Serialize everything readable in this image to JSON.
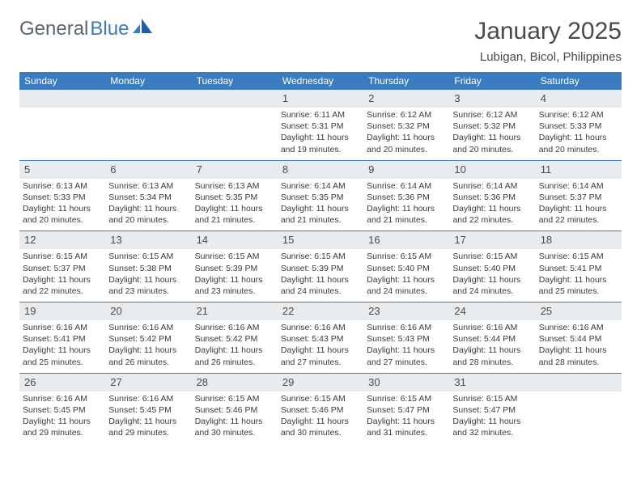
{
  "brand": {
    "part1": "General",
    "part2": "Blue"
  },
  "title": "January 2025",
  "location": "Lubigan, Bicol, Philippines",
  "colors": {
    "header_bg": "#3b7bbf",
    "header_text": "#ffffff",
    "daynum_bg": "#e9ecef",
    "text": "#4a4a4a",
    "rule": "#3b7bbf"
  },
  "weekdays": [
    "Sunday",
    "Monday",
    "Tuesday",
    "Wednesday",
    "Thursday",
    "Friday",
    "Saturday"
  ],
  "weeks": [
    [
      {
        "n": "",
        "sr": "",
        "ss": "",
        "d1": "",
        "d2": ""
      },
      {
        "n": "",
        "sr": "",
        "ss": "",
        "d1": "",
        "d2": ""
      },
      {
        "n": "",
        "sr": "",
        "ss": "",
        "d1": "",
        "d2": ""
      },
      {
        "n": "1",
        "sr": "Sunrise: 6:11 AM",
        "ss": "Sunset: 5:31 PM",
        "d1": "Daylight: 11 hours",
        "d2": "and 19 minutes."
      },
      {
        "n": "2",
        "sr": "Sunrise: 6:12 AM",
        "ss": "Sunset: 5:32 PM",
        "d1": "Daylight: 11 hours",
        "d2": "and 20 minutes."
      },
      {
        "n": "3",
        "sr": "Sunrise: 6:12 AM",
        "ss": "Sunset: 5:32 PM",
        "d1": "Daylight: 11 hours",
        "d2": "and 20 minutes."
      },
      {
        "n": "4",
        "sr": "Sunrise: 6:12 AM",
        "ss": "Sunset: 5:33 PM",
        "d1": "Daylight: 11 hours",
        "d2": "and 20 minutes."
      }
    ],
    [
      {
        "n": "5",
        "sr": "Sunrise: 6:13 AM",
        "ss": "Sunset: 5:33 PM",
        "d1": "Daylight: 11 hours",
        "d2": "and 20 minutes."
      },
      {
        "n": "6",
        "sr": "Sunrise: 6:13 AM",
        "ss": "Sunset: 5:34 PM",
        "d1": "Daylight: 11 hours",
        "d2": "and 20 minutes."
      },
      {
        "n": "7",
        "sr": "Sunrise: 6:13 AM",
        "ss": "Sunset: 5:35 PM",
        "d1": "Daylight: 11 hours",
        "d2": "and 21 minutes."
      },
      {
        "n": "8",
        "sr": "Sunrise: 6:14 AM",
        "ss": "Sunset: 5:35 PM",
        "d1": "Daylight: 11 hours",
        "d2": "and 21 minutes."
      },
      {
        "n": "9",
        "sr": "Sunrise: 6:14 AM",
        "ss": "Sunset: 5:36 PM",
        "d1": "Daylight: 11 hours",
        "d2": "and 21 minutes."
      },
      {
        "n": "10",
        "sr": "Sunrise: 6:14 AM",
        "ss": "Sunset: 5:36 PM",
        "d1": "Daylight: 11 hours",
        "d2": "and 22 minutes."
      },
      {
        "n": "11",
        "sr": "Sunrise: 6:14 AM",
        "ss": "Sunset: 5:37 PM",
        "d1": "Daylight: 11 hours",
        "d2": "and 22 minutes."
      }
    ],
    [
      {
        "n": "12",
        "sr": "Sunrise: 6:15 AM",
        "ss": "Sunset: 5:37 PM",
        "d1": "Daylight: 11 hours",
        "d2": "and 22 minutes."
      },
      {
        "n": "13",
        "sr": "Sunrise: 6:15 AM",
        "ss": "Sunset: 5:38 PM",
        "d1": "Daylight: 11 hours",
        "d2": "and 23 minutes."
      },
      {
        "n": "14",
        "sr": "Sunrise: 6:15 AM",
        "ss": "Sunset: 5:39 PM",
        "d1": "Daylight: 11 hours",
        "d2": "and 23 minutes."
      },
      {
        "n": "15",
        "sr": "Sunrise: 6:15 AM",
        "ss": "Sunset: 5:39 PM",
        "d1": "Daylight: 11 hours",
        "d2": "and 24 minutes."
      },
      {
        "n": "16",
        "sr": "Sunrise: 6:15 AM",
        "ss": "Sunset: 5:40 PM",
        "d1": "Daylight: 11 hours",
        "d2": "and 24 minutes."
      },
      {
        "n": "17",
        "sr": "Sunrise: 6:15 AM",
        "ss": "Sunset: 5:40 PM",
        "d1": "Daylight: 11 hours",
        "d2": "and 24 minutes."
      },
      {
        "n": "18",
        "sr": "Sunrise: 6:15 AM",
        "ss": "Sunset: 5:41 PM",
        "d1": "Daylight: 11 hours",
        "d2": "and 25 minutes."
      }
    ],
    [
      {
        "n": "19",
        "sr": "Sunrise: 6:16 AM",
        "ss": "Sunset: 5:41 PM",
        "d1": "Daylight: 11 hours",
        "d2": "and 25 minutes."
      },
      {
        "n": "20",
        "sr": "Sunrise: 6:16 AM",
        "ss": "Sunset: 5:42 PM",
        "d1": "Daylight: 11 hours",
        "d2": "and 26 minutes."
      },
      {
        "n": "21",
        "sr": "Sunrise: 6:16 AM",
        "ss": "Sunset: 5:42 PM",
        "d1": "Daylight: 11 hours",
        "d2": "and 26 minutes."
      },
      {
        "n": "22",
        "sr": "Sunrise: 6:16 AM",
        "ss": "Sunset: 5:43 PM",
        "d1": "Daylight: 11 hours",
        "d2": "and 27 minutes."
      },
      {
        "n": "23",
        "sr": "Sunrise: 6:16 AM",
        "ss": "Sunset: 5:43 PM",
        "d1": "Daylight: 11 hours",
        "d2": "and 27 minutes."
      },
      {
        "n": "24",
        "sr": "Sunrise: 6:16 AM",
        "ss": "Sunset: 5:44 PM",
        "d1": "Daylight: 11 hours",
        "d2": "and 28 minutes."
      },
      {
        "n": "25",
        "sr": "Sunrise: 6:16 AM",
        "ss": "Sunset: 5:44 PM",
        "d1": "Daylight: 11 hours",
        "d2": "and 28 minutes."
      }
    ],
    [
      {
        "n": "26",
        "sr": "Sunrise: 6:16 AM",
        "ss": "Sunset: 5:45 PM",
        "d1": "Daylight: 11 hours",
        "d2": "and 29 minutes."
      },
      {
        "n": "27",
        "sr": "Sunrise: 6:16 AM",
        "ss": "Sunset: 5:45 PM",
        "d1": "Daylight: 11 hours",
        "d2": "and 29 minutes."
      },
      {
        "n": "28",
        "sr": "Sunrise: 6:15 AM",
        "ss": "Sunset: 5:46 PM",
        "d1": "Daylight: 11 hours",
        "d2": "and 30 minutes."
      },
      {
        "n": "29",
        "sr": "Sunrise: 6:15 AM",
        "ss": "Sunset: 5:46 PM",
        "d1": "Daylight: 11 hours",
        "d2": "and 30 minutes."
      },
      {
        "n": "30",
        "sr": "Sunrise: 6:15 AM",
        "ss": "Sunset: 5:47 PM",
        "d1": "Daylight: 11 hours",
        "d2": "and 31 minutes."
      },
      {
        "n": "31",
        "sr": "Sunrise: 6:15 AM",
        "ss": "Sunset: 5:47 PM",
        "d1": "Daylight: 11 hours",
        "d2": "and 32 minutes."
      },
      {
        "n": "",
        "sr": "",
        "ss": "",
        "d1": "",
        "d2": ""
      }
    ]
  ]
}
